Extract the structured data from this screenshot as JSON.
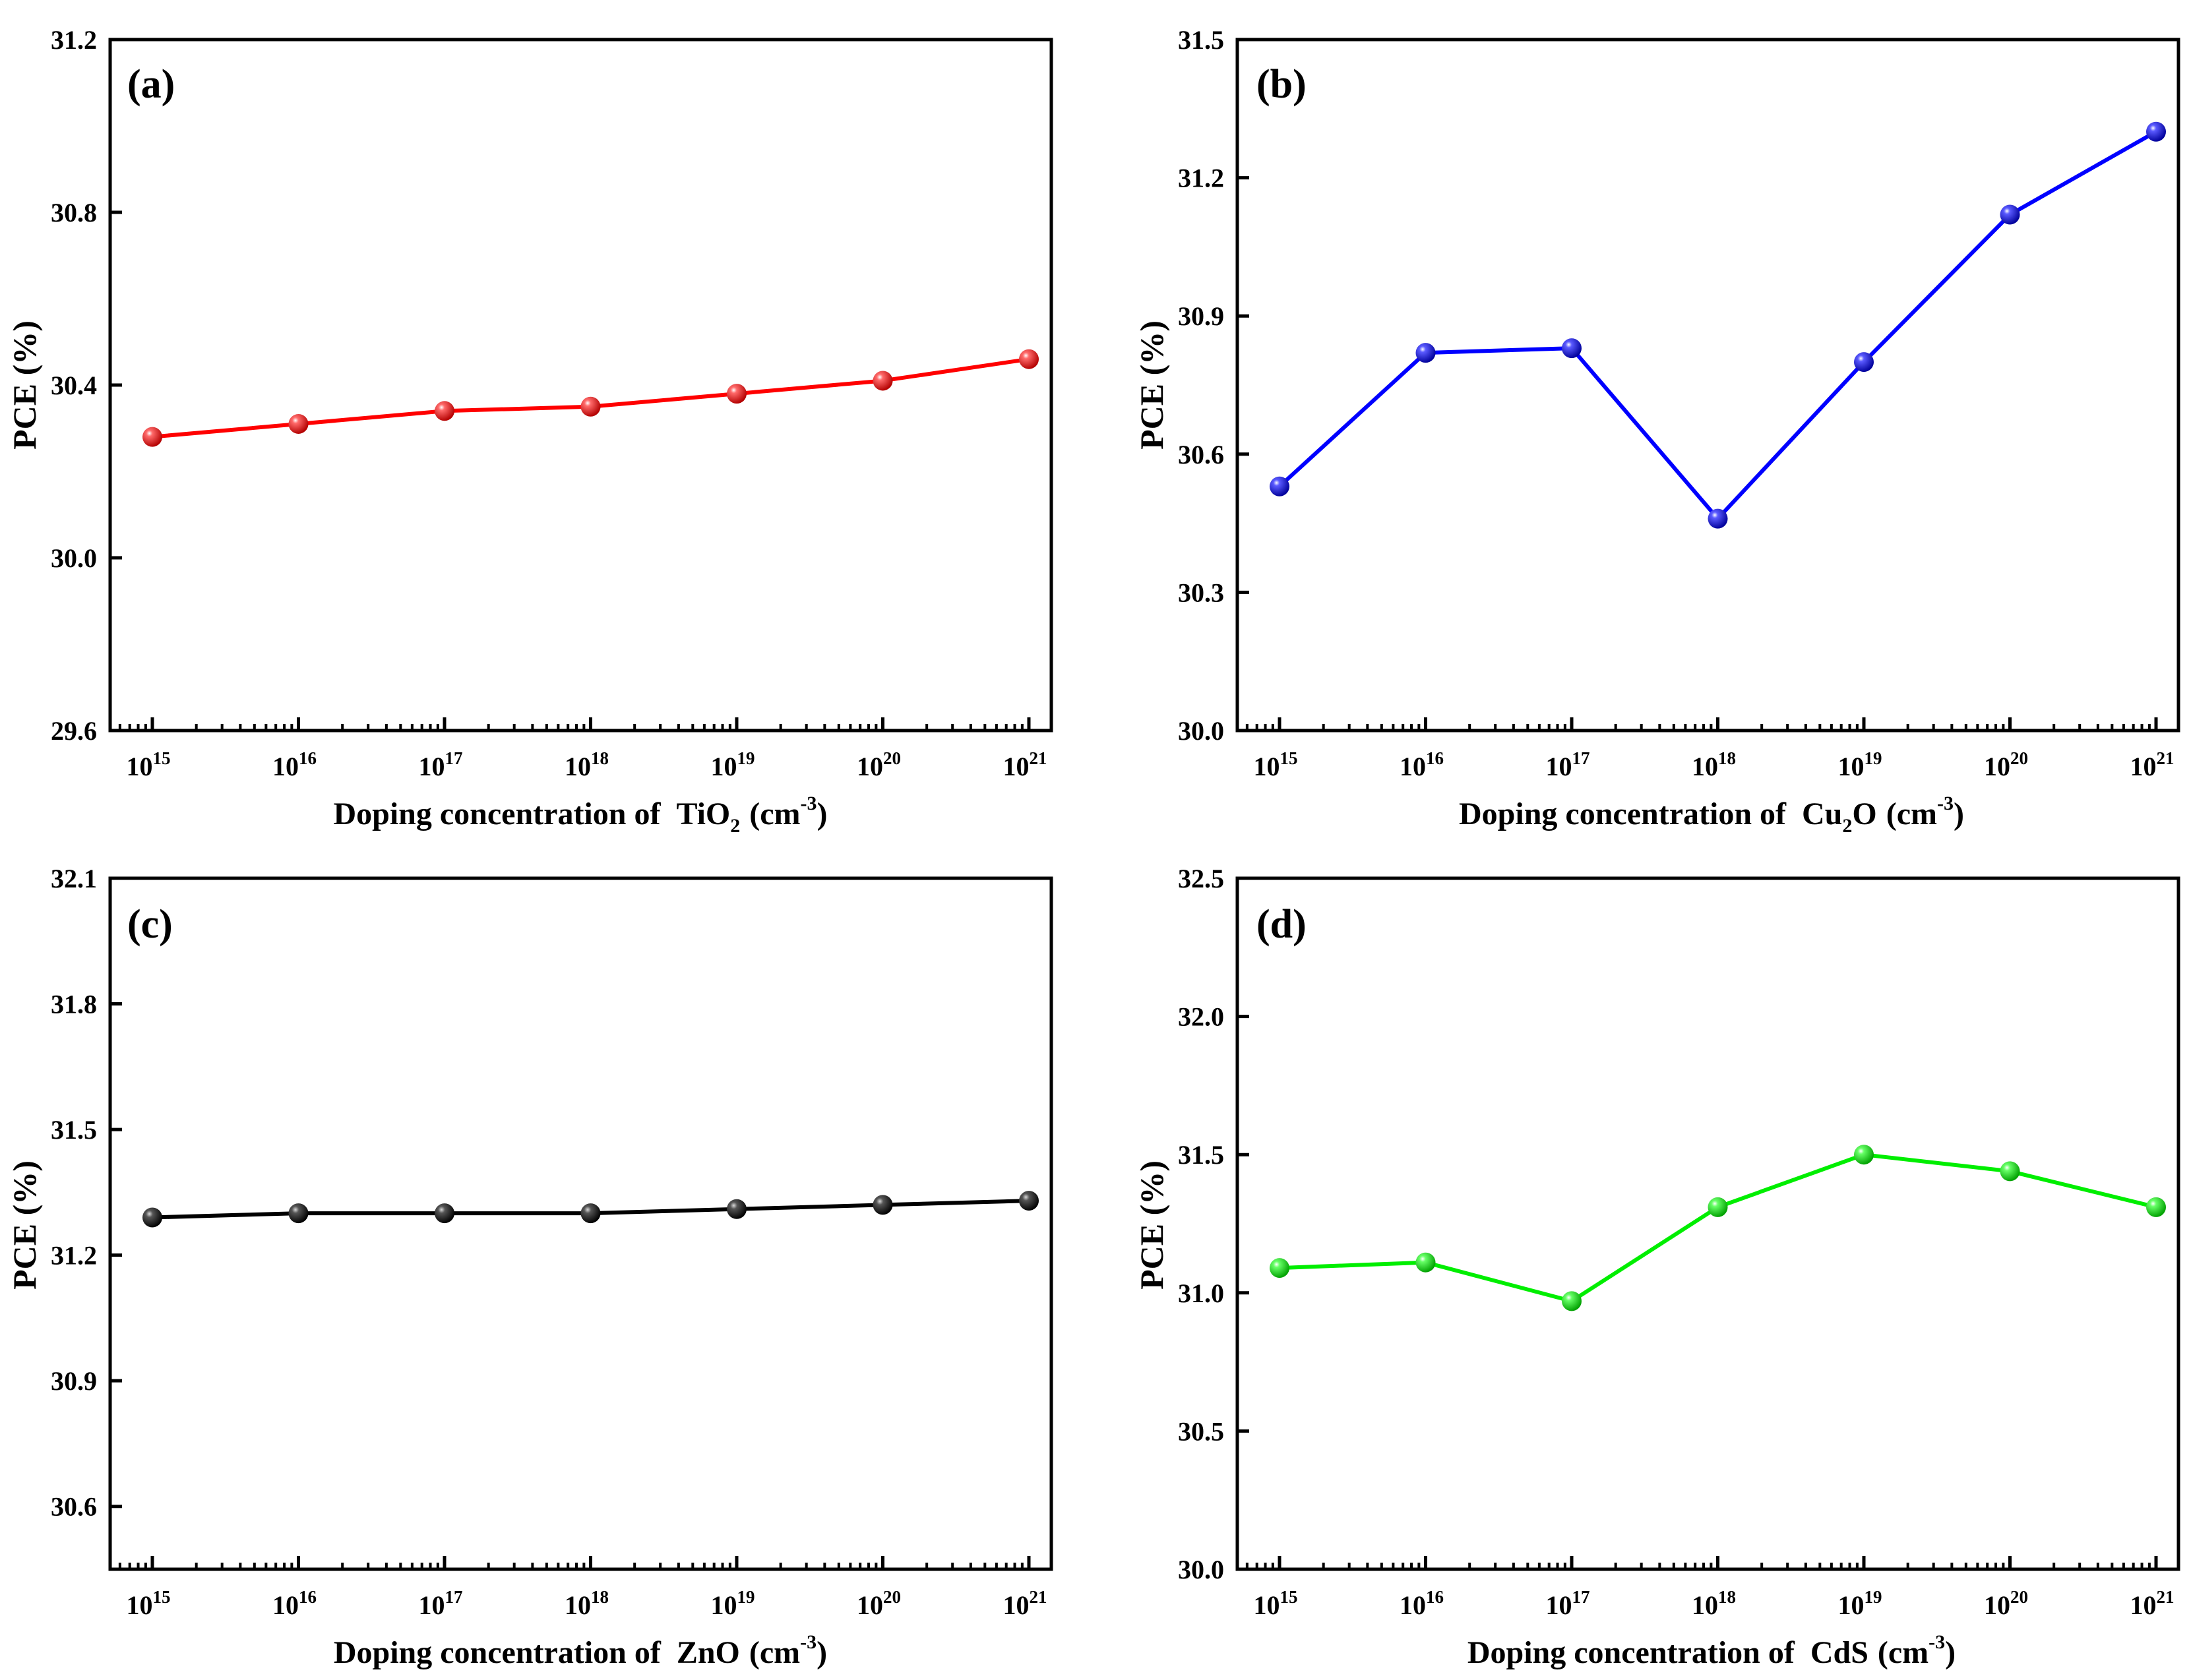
{
  "figure": {
    "panels": [
      {
        "label": "(a)",
        "ylabel": "PCE (%)",
        "xlabel_prefix": "Doping concentration of",
        "material": "TiO",
        "material_sub": "2",
        "unit_open": "(cm",
        "unit_sup": "-3",
        "unit_close": ")"
      },
      {
        "label": "(b)",
        "ylabel": "PCE (%)",
        "xlabel_prefix": "Doping concentration of",
        "material": "Cu",
        "material_sub": "2",
        "material_after": "O",
        "unit_open": "(cm",
        "unit_sup": "-3",
        "unit_close": ")"
      },
      {
        "label": "(c)",
        "ylabel": "PCE (%)",
        "xlabel_prefix": "Doping concentration of",
        "material": "ZnO",
        "material_sub": "",
        "unit_open": "(cm",
        "unit_sup": "-3",
        "unit_close": ")"
      },
      {
        "label": "(d)",
        "ylabel": "PCE (%)",
        "xlabel_prefix": "Doping concentration of",
        "material": "CdS",
        "material_sub": "",
        "unit_open": "(cm",
        "unit_sup": "-3",
        "unit_close": ")"
      }
    ]
  },
  "chart_data": [
    {
      "type": "line",
      "title": "(a)",
      "xscale": "log",
      "x_exponents": [
        15,
        16,
        17,
        18,
        19,
        20,
        21
      ],
      "x_tick_base": "10",
      "x_tick_exponents": [
        "15",
        "16",
        "17",
        "18",
        "19",
        "20",
        "21"
      ],
      "xlabel": "Doping concentration of TiO2 (cm-3)",
      "ylabel": "PCE (%)",
      "ylim": [
        29.6,
        31.2
      ],
      "yticks": [
        "29.6",
        "30.0",
        "30.4",
        "30.8",
        "31.2"
      ],
      "series": [
        {
          "name": "TiO2",
          "color": "#ff0000",
          "values": [
            30.28,
            30.31,
            30.34,
            30.35,
            30.38,
            30.41,
            30.46
          ]
        }
      ]
    },
    {
      "type": "line",
      "title": "(b)",
      "xscale": "log",
      "x_exponents": [
        15,
        16,
        17,
        18,
        19,
        20,
        21
      ],
      "x_tick_base": "10",
      "x_tick_exponents": [
        "15",
        "16",
        "17",
        "18",
        "19",
        "20",
        "21"
      ],
      "xlabel": "Doping concentration of Cu2O (cm-3)",
      "ylabel": "PCE (%)",
      "ylim": [
        30.0,
        31.5
      ],
      "yticks": [
        "30.0",
        "30.3",
        "30.6",
        "30.9",
        "31.2",
        "31.5"
      ],
      "series": [
        {
          "name": "Cu2O",
          "color": "#0000ff",
          "values": [
            30.53,
            30.82,
            30.83,
            30.46,
            30.8,
            31.12,
            31.3
          ]
        }
      ]
    },
    {
      "type": "line",
      "title": "(c)",
      "xscale": "log",
      "x_exponents": [
        15,
        16,
        17,
        18,
        19,
        20,
        21
      ],
      "x_tick_base": "10",
      "x_tick_exponents": [
        "15",
        "16",
        "17",
        "18",
        "19",
        "20",
        "21"
      ],
      "xlabel": "Doping concentration of ZnO (cm-3)",
      "ylabel": "PCE (%)",
      "ylim": [
        30.45,
        32.1
      ],
      "yticks": [
        "30.6",
        "30.9",
        "31.2",
        "31.5",
        "31.8",
        "32.1"
      ],
      "ytick_values": [
        30.6,
        30.9,
        31.2,
        31.5,
        31.8,
        32.1
      ],
      "series": [
        {
          "name": "ZnO",
          "color": "#000000",
          "values": [
            31.29,
            31.3,
            31.3,
            31.3,
            31.31,
            31.32,
            31.33
          ]
        }
      ]
    },
    {
      "type": "line",
      "title": "(d)",
      "xscale": "log",
      "x_exponents": [
        15,
        16,
        17,
        18,
        19,
        20,
        21
      ],
      "x_tick_base": "10",
      "x_tick_exponents": [
        "15",
        "16",
        "17",
        "18",
        "19",
        "20",
        "21"
      ],
      "xlabel": "Doping concentration of CdS (cm-3)",
      "ylabel": "PCE (%)",
      "ylim": [
        30.0,
        32.5
      ],
      "yticks": [
        "30.0",
        "30.5",
        "31.0",
        "31.5",
        "32.0",
        "32.5"
      ],
      "series": [
        {
          "name": "CdS",
          "color": "#00ee00",
          "values": [
            31.09,
            31.11,
            30.97,
            31.31,
            31.5,
            31.44,
            31.31
          ]
        }
      ]
    }
  ]
}
